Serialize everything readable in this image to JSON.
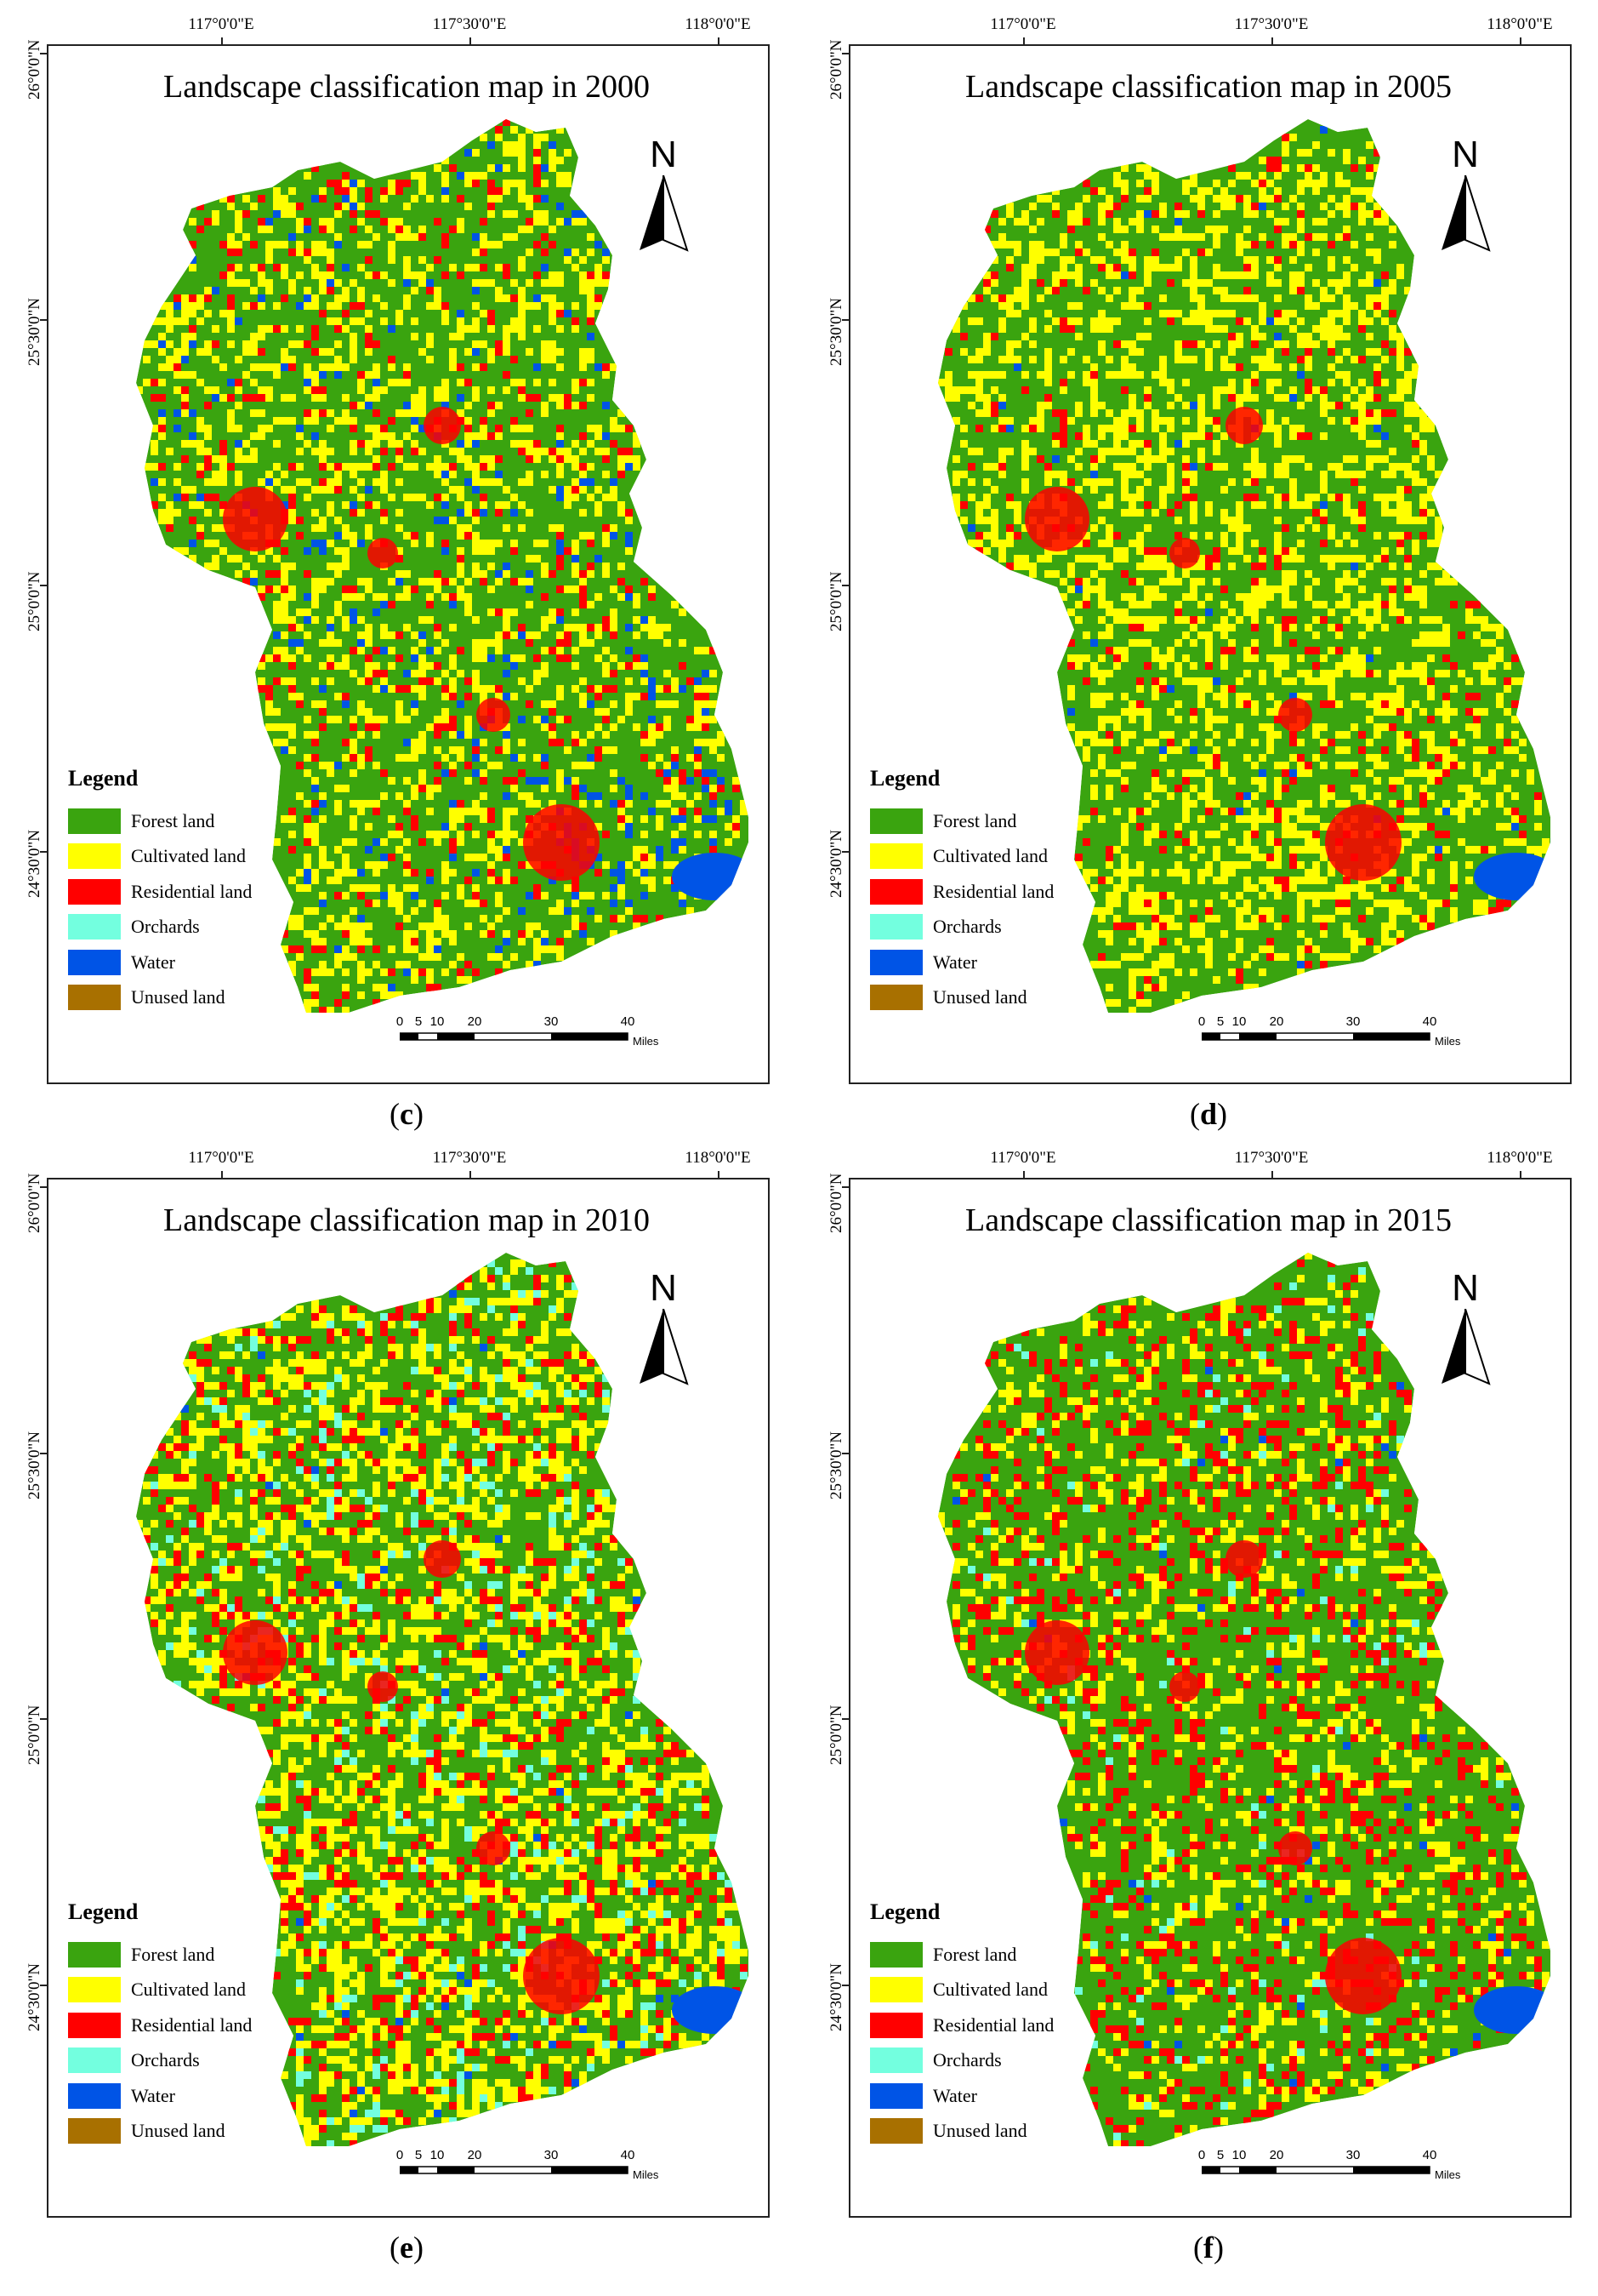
{
  "panels": [
    {
      "id": "c",
      "title": "Landscape classification map in 2000",
      "caption_open": "(",
      "caption_letter": "c",
      "caption_close": ")",
      "composition": "forest-water"
    },
    {
      "id": "d",
      "title": "Landscape classification map in 2005",
      "caption_open": "(",
      "caption_letter": "d",
      "caption_close": ")",
      "composition": "forest-cultivated"
    },
    {
      "id": "e",
      "title": "Landscape classification map in 2010",
      "caption_open": "(",
      "caption_letter": "e",
      "caption_close": ")",
      "composition": "cultivated-orchards"
    },
    {
      "id": "f",
      "title": "Landscape classification map in 2015",
      "caption_open": "(",
      "caption_letter": "f",
      "caption_close": ")",
      "composition": "forest-residential"
    }
  ],
  "axes": {
    "lon_labels": [
      "117°0'0\"E",
      "117°30'0\"E",
      "118°0'0\"E"
    ],
    "lat_labels": [
      "26°0'0\"N",
      "25°30'0\"N",
      "25°0'0\"N",
      "24°30'0\"N"
    ]
  },
  "north_label": "N",
  "legend": {
    "title": "Legend",
    "items": [
      {
        "label": "Forest land",
        "color": "#3aa40f"
      },
      {
        "label": "Cultivated land",
        "color": "#ffff00"
      },
      {
        "label": "Residential land",
        "color": "#ff0000"
      },
      {
        "label": "Orchards",
        "color": "#73ffdf"
      },
      {
        "label": "Water",
        "color": "#0054e6"
      },
      {
        "label": "Unused land",
        "color": "#a87000"
      }
    ]
  },
  "scale": {
    "labels": [
      "0",
      "5",
      "10",
      "20",
      "30",
      "40"
    ],
    "unit": "Miles"
  }
}
